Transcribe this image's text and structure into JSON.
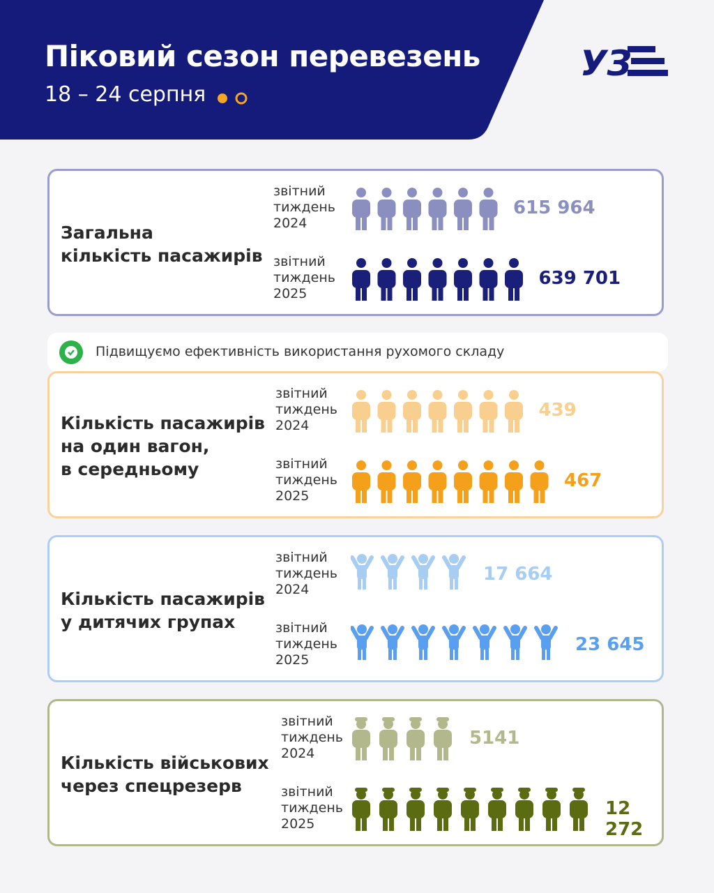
{
  "header": {
    "title": "Піковий сезон перевезень",
    "subtitle": "18 – 24 серпня",
    "logo": "УЗ"
  },
  "note": "Підвищуємо ефективність використання рухомого складу",
  "cards": [
    {
      "title_lines": [
        "Загальна",
        "кількість пасажирів"
      ],
      "rows": [
        {
          "label_lines": [
            "звітний",
            "тиждень",
            "2024"
          ],
          "value": "615 964"
        },
        {
          "label_lines": [
            "звітний",
            "тиждень",
            "2025"
          ],
          "value": "639 701"
        }
      ]
    },
    {
      "title_lines": [
        "Кількість пасажирів",
        "на один вагон,",
        "в середньому"
      ],
      "rows": [
        {
          "label_lines": [
            "звітний",
            "тиждень",
            "2024"
          ],
          "value": "439"
        },
        {
          "label_lines": [
            "звітний",
            "тиждень",
            "2025"
          ],
          "value": "467"
        }
      ]
    },
    {
      "title_lines": [
        "Кількість пасажирів",
        "у дитячих групах"
      ],
      "rows": [
        {
          "label_lines": [
            "звітний",
            "тиждень",
            "2024"
          ],
          "value": "17 664"
        },
        {
          "label_lines": [
            "звітний",
            "тиждень",
            "2025"
          ],
          "value": "23 645"
        }
      ]
    },
    {
      "title_lines": [
        "Кількість військових",
        "через спецрезерв"
      ],
      "rows": [
        {
          "label_lines": [
            "звітний",
            "тиждень",
            "2024"
          ],
          "value": "5141"
        },
        {
          "label_lines": [
            "звітний",
            "тиждень",
            "2025"
          ],
          "value": "12 272"
        }
      ]
    }
  ]
}
